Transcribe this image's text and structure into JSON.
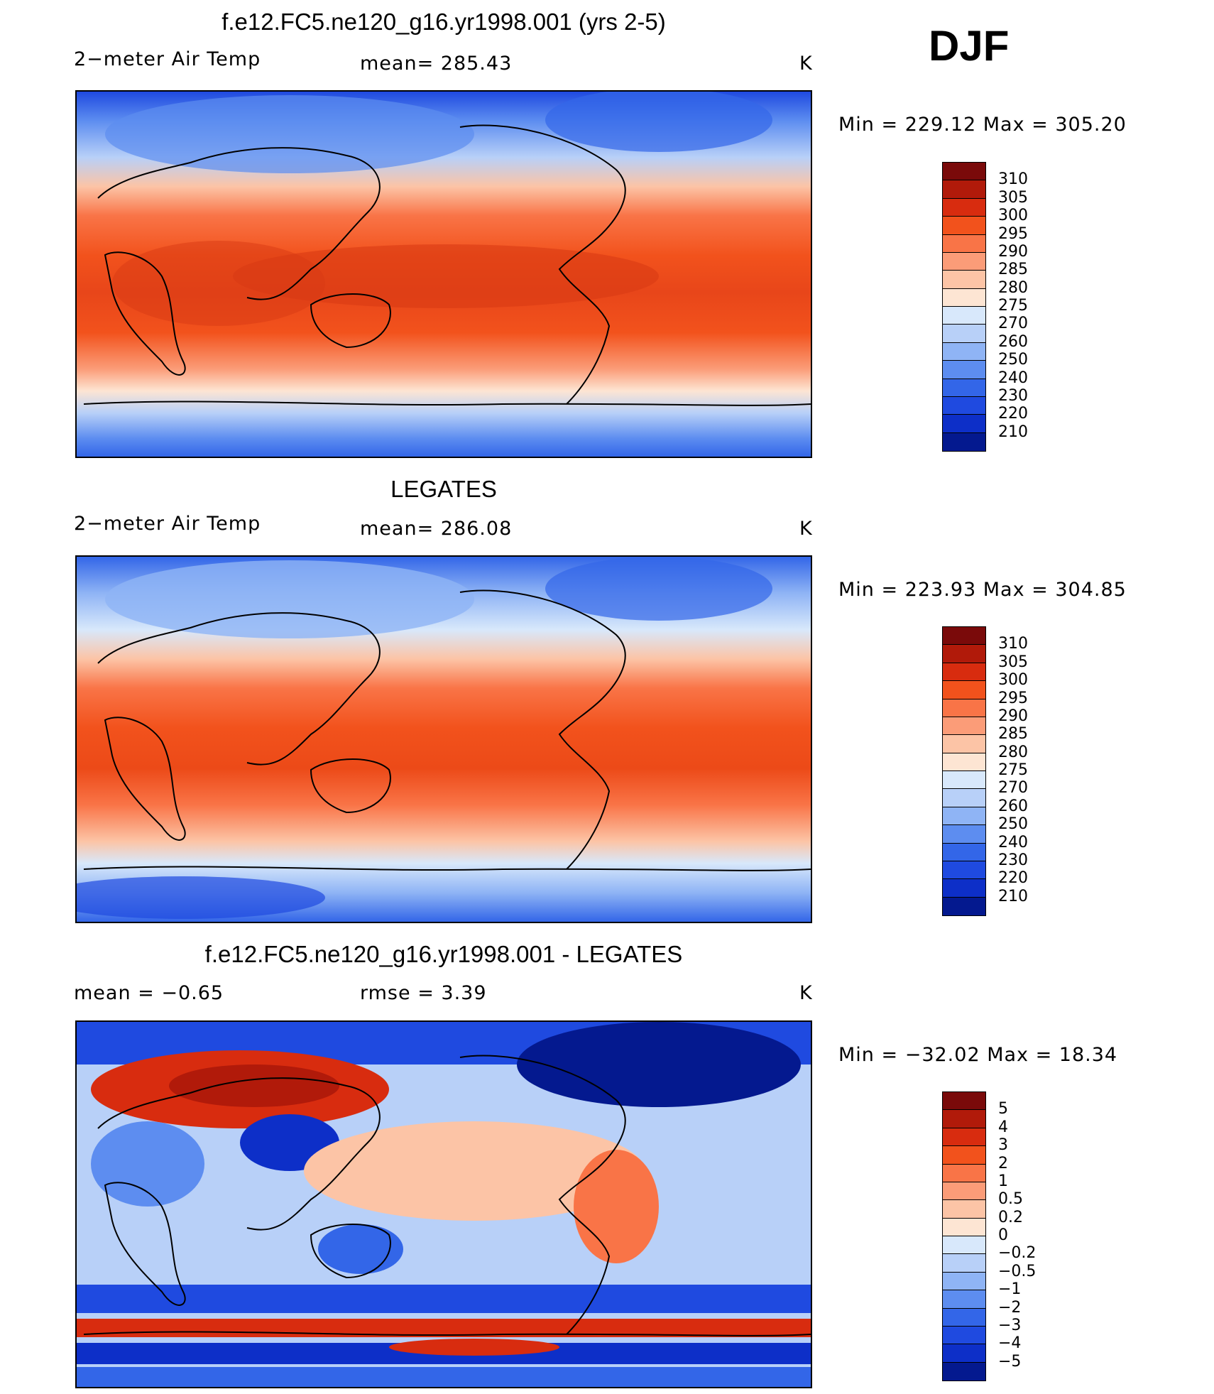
{
  "season": "DJF",
  "units": "K",
  "panels": [
    {
      "title": "f.e12.FC5.ne120_g16.yr1998.001 (yrs 2-5)",
      "left_label": "2−meter Air Temp",
      "center_label": "mean=  285.43",
      "units": "K",
      "min_max": "Min  =  229.12  Max  =  305.20",
      "colorbar": {
        "colors": [
          "#7a0a0a",
          "#b11a0a",
          "#d82c0f",
          "#f2521c",
          "#f97447",
          "#fb9c78",
          "#fcc4a6",
          "#fde5d3",
          "#d8e8fb",
          "#b8d0f8",
          "#8fb4f5",
          "#5d8df0",
          "#3366e8",
          "#1f4ae0",
          "#0d2fc8",
          "#04198f"
        ],
        "ticks": [
          "310",
          "305",
          "300",
          "295",
          "290",
          "285",
          "280",
          "275",
          "270",
          "260",
          "250",
          "240",
          "230",
          "220",
          "210"
        ]
      }
    },
    {
      "title": "LEGATES",
      "left_label": "2−meter Air Temp",
      "center_label": "mean=  286.08",
      "units": "K",
      "min_max": "Min  =  223.93  Max  =  304.85",
      "colorbar": {
        "colors": [
          "#7a0a0a",
          "#b11a0a",
          "#d82c0f",
          "#f2521c",
          "#f97447",
          "#fb9c78",
          "#fcc4a6",
          "#fde5d3",
          "#d8e8fb",
          "#b8d0f8",
          "#8fb4f5",
          "#5d8df0",
          "#3366e8",
          "#1f4ae0",
          "#0d2fc8",
          "#04198f"
        ],
        "ticks": [
          "310",
          "305",
          "300",
          "295",
          "290",
          "285",
          "280",
          "275",
          "270",
          "260",
          "250",
          "240",
          "230",
          "220",
          "210"
        ]
      }
    },
    {
      "title": "f.e12.FC5.ne120_g16.yr1998.001 - LEGATES",
      "left_label": "mean  =     −0.65",
      "center_label": "rmse  =      3.39",
      "units": "K",
      "min_max": "Min  =  −32.02  Max  =    18.34",
      "colorbar": {
        "colors": [
          "#7a0a0a",
          "#b11a0a",
          "#d82c0f",
          "#f2521c",
          "#f97447",
          "#fb9c78",
          "#fcc4a6",
          "#fde5d3",
          "#d8e8fb",
          "#b8d0f8",
          "#8fb4f5",
          "#5d8df0",
          "#3366e8",
          "#1f4ae0",
          "#0d2fc8",
          "#04198f"
        ],
        "ticks": [
          "5",
          "4",
          "3",
          "2",
          "1",
          "0.5",
          "0.2",
          "0",
          "−0.2",
          "−0.5",
          "−1",
          "−2",
          "−3",
          "−4",
          "−5"
        ]
      }
    }
  ]
}
